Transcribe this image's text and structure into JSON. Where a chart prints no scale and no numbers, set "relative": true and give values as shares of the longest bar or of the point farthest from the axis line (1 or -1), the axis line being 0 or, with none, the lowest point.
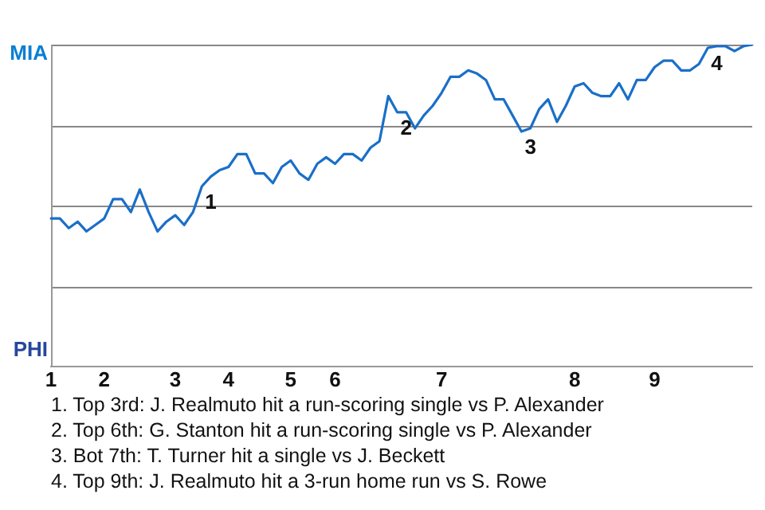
{
  "chart_data": {
    "type": "line",
    "relative": true,
    "categories": [
      "1",
      null,
      null,
      null,
      null,
      null,
      "2",
      null,
      null,
      null,
      null,
      null,
      null,
      null,
      "3",
      null,
      null,
      null,
      null,
      null,
      "4",
      null,
      null,
      null,
      null,
      null,
      null,
      "5",
      null,
      null,
      null,
      null,
      "6",
      null,
      null,
      null,
      null,
      null,
      null,
      null,
      null,
      null,
      null,
      null,
      "7",
      null,
      null,
      null,
      null,
      null,
      null,
      null,
      null,
      null,
      null,
      null,
      null,
      null,
      null,
      "8",
      null,
      null,
      null,
      null,
      null,
      null,
      null,
      null,
      "9",
      null,
      null,
      null,
      null,
      null,
      null,
      null,
      null,
      null,
      null,
      null
    ],
    "series": [
      {
        "color": "#1a6fc8",
        "values": [
          0.46,
          0.46,
          0.43,
          0.45,
          0.42,
          0.44,
          0.46,
          0.52,
          0.52,
          0.48,
          0.55,
          0.48,
          0.42,
          0.45,
          0.47,
          0.44,
          0.48,
          0.56,
          0.59,
          0.61,
          0.62,
          0.66,
          0.66,
          0.6,
          0.6,
          0.57,
          0.62,
          0.64,
          0.6,
          0.58,
          0.63,
          0.65,
          0.63,
          0.66,
          0.66,
          0.64,
          0.68,
          0.7,
          0.84,
          0.79,
          0.79,
          0.74,
          0.78,
          0.81,
          0.85,
          0.9,
          0.9,
          0.92,
          0.91,
          0.89,
          0.83,
          0.83,
          0.78,
          0.73,
          0.74,
          0.8,
          0.83,
          0.76,
          0.81,
          0.87,
          0.88,
          0.85,
          0.84,
          0.84,
          0.88,
          0.83,
          0.89,
          0.89,
          0.93,
          0.95,
          0.95,
          0.92,
          0.92,
          0.94,
          0.99,
          0.995,
          0.995,
          0.98,
          0.995,
          1
        ]
      }
    ],
    "grid": "y",
    "legend": false,
    "marker": "none",
    "line_style": "solid",
    "annotations": [
      {
        "text": "MIA"
      },
      {
        "text": "PHI"
      },
      {
        "text": "1",
        "y": 0.56
      },
      {
        "text": "2",
        "y": 0.79
      },
      {
        "text": "3",
        "y": 0.73
      },
      {
        "text": "4",
        "y": 0.99
      },
      "1. Top 3rd: J. Realmuto hit a run-scoring single vs P. Alexander",
      "2. Top 6th: G. Stanton hit a run-scoring single vs P. Alexander",
      "3. Bot 7th: T. Turner hit a single vs J. Beckett",
      "4. Top 9th: J. Realmuto hit a 3-run home run vs S. Rowe"
    ]
  }
}
